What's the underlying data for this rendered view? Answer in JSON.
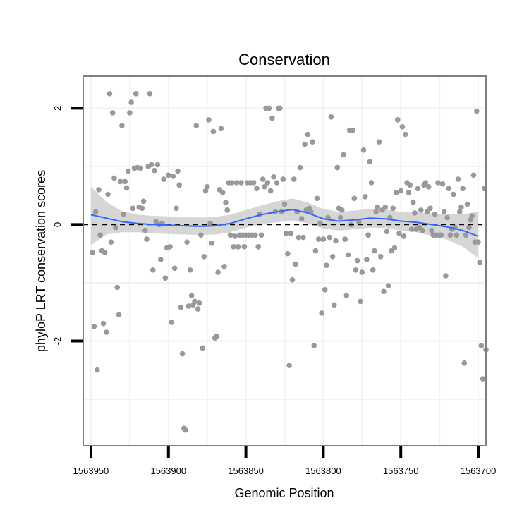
{
  "chart_data": {
    "type": "scatter",
    "title": "Conservation",
    "xlabel": "Genomic Position",
    "ylabel": "phyloP LRT conservation scores",
    "x_reversed": true,
    "xlim": [
      1563955,
      1563695
    ],
    "ylim": [
      -3.8,
      2.55
    ],
    "x_ticks": [
      1563950,
      1563900,
      1563850,
      1563800,
      1563750,
      1563700
    ],
    "x_tick_labels": [
      "1563950",
      "1563900",
      "1563850",
      "1563800",
      "1563750",
      "1563700"
    ],
    "y_ticks": [
      2,
      0,
      -2
    ],
    "y_tick_labels": [
      "2",
      "0",
      "-2"
    ],
    "grid": true,
    "reference_line": {
      "y": 0,
      "style": "dashed"
    },
    "colors": {
      "points": "#999999",
      "smooth_line": "#3366ff",
      "ribbon": "#cccccc",
      "reference": "#000000",
      "panel_border": "#7f7f7f",
      "grid": "#f2f2f2"
    },
    "points": [
      {
        "x": 1563949,
        "y": -0.48
      },
      {
        "x": 1563948,
        "y": -1.75
      },
      {
        "x": 1563947,
        "y": 0.22
      },
      {
        "x": 1563946,
        "y": -2.5
      },
      {
        "x": 1563945,
        "y": 0.6
      },
      {
        "x": 1563944,
        "y": -0.18
      },
      {
        "x": 1563943,
        "y": -0.45
      },
      {
        "x": 1563942,
        "y": -1.7
      },
      {
        "x": 1563941,
        "y": -0.48
      },
      {
        "x": 1563940,
        "y": -1.85
      },
      {
        "x": 1563939,
        "y": 0.52
      },
      {
        "x": 1563938,
        "y": 2.25
      },
      {
        "x": 1563937,
        "y": -0.3
      },
      {
        "x": 1563936,
        "y": 1.92
      },
      {
        "x": 1563935,
        "y": 0.8
      },
      {
        "x": 1563934,
        "y": -0.05
      },
      {
        "x": 1563933,
        "y": -1.08
      },
      {
        "x": 1563932,
        "y": -1.55
      },
      {
        "x": 1563931,
        "y": 0.74
      },
      {
        "x": 1563930,
        "y": 1.7
      },
      {
        "x": 1563929,
        "y": 0.18
      },
      {
        "x": 1563928,
        "y": 0.74
      },
      {
        "x": 1563927,
        "y": 0.63
      },
      {
        "x": 1563926,
        "y": 0.92
      },
      {
        "x": 1563925,
        "y": 1.92
      },
      {
        "x": 1563924,
        "y": 2.1
      },
      {
        "x": 1563923,
        "y": 0.28
      },
      {
        "x": 1563922,
        "y": 0.97
      },
      {
        "x": 1563921,
        "y": 2.25
      },
      {
        "x": 1563920,
        "y": 0.98
      },
      {
        "x": 1563919,
        "y": 0.3
      },
      {
        "x": 1563918,
        "y": 0.97
      },
      {
        "x": 1563917,
        "y": 0.28
      },
      {
        "x": 1563916,
        "y": 0.4
      },
      {
        "x": 1563915,
        "y": -0.1
      },
      {
        "x": 1563914,
        "y": -0.25
      },
      {
        "x": 1563913,
        "y": 1.0
      },
      {
        "x": 1563912,
        "y": 2.25
      },
      {
        "x": 1563911,
        "y": 1.03
      },
      {
        "x": 1563910,
        "y": -0.78
      },
      {
        "x": 1563909,
        "y": 0.93
      },
      {
        "x": 1563908,
        "y": 0.05
      },
      {
        "x": 1563907,
        "y": 1.03
      },
      {
        "x": 1563906,
        "y": 0.0
      },
      {
        "x": 1563905,
        "y": -0.6
      },
      {
        "x": 1563904,
        "y": 0.02
      },
      {
        "x": 1563903,
        "y": 0.78
      },
      {
        "x": 1563902,
        "y": -0.92
      },
      {
        "x": 1563901,
        "y": -0.4
      },
      {
        "x": 1563900,
        "y": 0.85
      },
      {
        "x": 1563899,
        "y": -0.38
      },
      {
        "x": 1563898,
        "y": -1.68
      },
      {
        "x": 1563897,
        "y": 0.83
      },
      {
        "x": 1563896,
        "y": -0.75
      },
      {
        "x": 1563895,
        "y": 0.28
      },
      {
        "x": 1563894,
        "y": 0.92
      },
      {
        "x": 1563893,
        "y": 0.68
      },
      {
        "x": 1563892,
        "y": -1.42
      },
      {
        "x": 1563891,
        "y": -2.22
      },
      {
        "x": 1563890,
        "y": -3.5
      },
      {
        "x": 1563889,
        "y": -3.53
      },
      {
        "x": 1563888,
        "y": -0.3
      },
      {
        "x": 1563887,
        "y": -1.4
      },
      {
        "x": 1563886,
        "y": -0.78
      },
      {
        "x": 1563885,
        "y": -1.22
      },
      {
        "x": 1563884,
        "y": -1.38
      },
      {
        "x": 1563883,
        "y": -1.32
      },
      {
        "x": 1563882,
        "y": 1.7
      },
      {
        "x": 1563881,
        "y": -1.45
      },
      {
        "x": 1563880,
        "y": -1.35
      },
      {
        "x": 1563879,
        "y": -0.18
      },
      {
        "x": 1563878,
        "y": -2.12
      },
      {
        "x": 1563877,
        "y": -0.55
      },
      {
        "x": 1563876,
        "y": 0.58
      },
      {
        "x": 1563875,
        "y": 0.65
      },
      {
        "x": 1563874,
        "y": 1.8
      },
      {
        "x": 1563873,
        "y": 0.02
      },
      {
        "x": 1563872,
        "y": -0.32
      },
      {
        "x": 1563871,
        "y": 1.6
      },
      {
        "x": 1563870,
        "y": -1.95
      },
      {
        "x": 1563869,
        "y": -1.92
      },
      {
        "x": 1563868,
        "y": -0.82
      },
      {
        "x": 1563867,
        "y": 0.6
      },
      {
        "x": 1563866,
        "y": 1.65
      },
      {
        "x": 1563865,
        "y": 0.55
      },
      {
        "x": 1563864,
        "y": -0.72
      },
      {
        "x": 1563863,
        "y": 0.38
      },
      {
        "x": 1563862,
        "y": 0.25
      },
      {
        "x": 1563861,
        "y": 0.72
      },
      {
        "x": 1563860,
        "y": -0.18
      },
      {
        "x": 1563859,
        "y": 0.72
      },
      {
        "x": 1563858,
        "y": -0.38
      },
      {
        "x": 1563857,
        "y": -0.2
      },
      {
        "x": 1563856,
        "y": 0.72
      },
      {
        "x": 1563855,
        "y": -0.38
      },
      {
        "x": 1563854,
        "y": -0.18
      },
      {
        "x": 1563853,
        "y": 0.72
      },
      {
        "x": 1563852,
        "y": -0.18
      },
      {
        "x": 1563851,
        "y": -0.38
      },
      {
        "x": 1563850,
        "y": -0.18
      },
      {
        "x": 1563849,
        "y": 0.72
      },
      {
        "x": 1563848,
        "y": -0.18
      },
      {
        "x": 1563847,
        "y": 0.72
      },
      {
        "x": 1563846,
        "y": -0.18
      },
      {
        "x": 1563845,
        "y": 0.72
      },
      {
        "x": 1563844,
        "y": -0.18
      },
      {
        "x": 1563843,
        "y": 0.62
      },
      {
        "x": 1563842,
        "y": -0.38
      },
      {
        "x": 1563841,
        "y": 0.18
      },
      {
        "x": 1563840,
        "y": -0.18
      },
      {
        "x": 1563839,
        "y": 0.78
      },
      {
        "x": 1563838,
        "y": 0.65
      },
      {
        "x": 1563837,
        "y": 2.0
      },
      {
        "x": 1563836,
        "y": 0.72
      },
      {
        "x": 1563835,
        "y": 2.0
      },
      {
        "x": 1563834,
        "y": 0.58
      },
      {
        "x": 1563833,
        "y": 1.83
      },
      {
        "x": 1563832,
        "y": 0.82
      },
      {
        "x": 1563831,
        "y": 0.22
      },
      {
        "x": 1563830,
        "y": 0.72
      },
      {
        "x": 1563829,
        "y": 2.0
      },
      {
        "x": 1563828,
        "y": 2.0
      },
      {
        "x": 1563827,
        "y": 0.22
      },
      {
        "x": 1563826,
        "y": 0.78
      },
      {
        "x": 1563825,
        "y": 0.35
      },
      {
        "x": 1563824,
        "y": -0.15
      },
      {
        "x": 1563823,
        "y": -0.5
      },
      {
        "x": 1563822,
        "y": -2.42
      },
      {
        "x": 1563821,
        "y": -0.15
      },
      {
        "x": 1563820,
        "y": -0.95
      },
      {
        "x": 1563819,
        "y": 0.78
      },
      {
        "x": 1563818,
        "y": -0.68
      },
      {
        "x": 1563817,
        "y": 0.22
      },
      {
        "x": 1563816,
        "y": -0.22
      },
      {
        "x": 1563815,
        "y": 0.98
      },
      {
        "x": 1563814,
        "y": 0.1
      },
      {
        "x": 1563813,
        "y": -0.22
      },
      {
        "x": 1563812,
        "y": 1.38
      },
      {
        "x": 1563811,
        "y": 0.25
      },
      {
        "x": 1563810,
        "y": 1.55
      },
      {
        "x": 1563809,
        "y": 0.28
      },
      {
        "x": 1563808,
        "y": 0.22
      },
      {
        "x": 1563807,
        "y": 1.42
      },
      {
        "x": 1563806,
        "y": -2.08
      },
      {
        "x": 1563805,
        "y": -0.45
      },
      {
        "x": 1563804,
        "y": 0.45
      },
      {
        "x": 1563803,
        "y": -0.25
      },
      {
        "x": 1563802,
        "y": 0.02
      },
      {
        "x": 1563801,
        "y": -1.52
      },
      {
        "x": 1563800,
        "y": -0.25
      },
      {
        "x": 1563799,
        "y": -1.12
      },
      {
        "x": 1563798,
        "y": -0.7
      },
      {
        "x": 1563797,
        "y": 0.12
      },
      {
        "x": 1563796,
        "y": -0.22
      },
      {
        "x": 1563795,
        "y": 1.85
      },
      {
        "x": 1563794,
        "y": -0.55
      },
      {
        "x": 1563793,
        "y": -1.38
      },
      {
        "x": 1563792,
        "y": -0.28
      },
      {
        "x": 1563791,
        "y": 0.98
      },
      {
        "x": 1563790,
        "y": 0.28
      },
      {
        "x": 1563789,
        "y": 0.12
      },
      {
        "x": 1563788,
        "y": 0.25
      },
      {
        "x": 1563787,
        "y": 1.2
      },
      {
        "x": 1563786,
        "y": -0.25
      },
      {
        "x": 1563785,
        "y": -1.22
      },
      {
        "x": 1563784,
        "y": -0.52
      },
      {
        "x": 1563783,
        "y": 1.62
      },
      {
        "x": 1563782,
        "y": 0.0
      },
      {
        "x": 1563781,
        "y": 1.62
      },
      {
        "x": 1563780,
        "y": 0.45
      },
      {
        "x": 1563779,
        "y": -0.78
      },
      {
        "x": 1563778,
        "y": -0.62
      },
      {
        "x": 1563777,
        "y": 0.05
      },
      {
        "x": 1563776,
        "y": -1.32
      },
      {
        "x": 1563775,
        "y": -0.82
      },
      {
        "x": 1563774,
        "y": 1.28
      },
      {
        "x": 1563773,
        "y": 0.48
      },
      {
        "x": 1563772,
        "y": -0.6
      },
      {
        "x": 1563771,
        "y": -0.18
      },
      {
        "x": 1563770,
        "y": 1.08
      },
      {
        "x": 1563769,
        "y": 0.72
      },
      {
        "x": 1563768,
        "y": -0.78
      },
      {
        "x": 1563767,
        "y": -0.45
      },
      {
        "x": 1563766,
        "y": 0.22
      },
      {
        "x": 1563765,
        "y": 0.3
      },
      {
        "x": 1563764,
        "y": 1.42
      },
      {
        "x": 1563763,
        "y": -0.55
      },
      {
        "x": 1563762,
        "y": 0.25
      },
      {
        "x": 1563761,
        "y": -1.15
      },
      {
        "x": 1563760,
        "y": 0.3
      },
      {
        "x": 1563759,
        "y": -0.12
      },
      {
        "x": 1563758,
        "y": -1.05
      },
      {
        "x": 1563757,
        "y": 0.12
      },
      {
        "x": 1563756,
        "y": -0.45
      },
      {
        "x": 1563755,
        "y": 0.28
      },
      {
        "x": 1563754,
        "y": -0.4
      },
      {
        "x": 1563753,
        "y": 0.55
      },
      {
        "x": 1563752,
        "y": 1.8
      },
      {
        "x": 1563751,
        "y": -0.15
      },
      {
        "x": 1563750,
        "y": 0.58
      },
      {
        "x": 1563749,
        "y": 1.68
      },
      {
        "x": 1563748,
        "y": -0.2
      },
      {
        "x": 1563747,
        "y": 1.55
      },
      {
        "x": 1563746,
        "y": 0.72
      },
      {
        "x": 1563745,
        "y": 0.55
      },
      {
        "x": 1563744,
        "y": 0.68
      },
      {
        "x": 1563743,
        "y": -0.08
      },
      {
        "x": 1563742,
        "y": 0.38
      },
      {
        "x": 1563741,
        "y": 0.2
      },
      {
        "x": 1563740,
        "y": -0.08
      },
      {
        "x": 1563739,
        "y": 0.62
      },
      {
        "x": 1563738,
        "y": -0.05
      },
      {
        "x": 1563737,
        "y": 0.25
      },
      {
        "x": 1563736,
        "y": -0.1
      },
      {
        "x": 1563735,
        "y": 0.68
      },
      {
        "x": 1563734,
        "y": 0.72
      },
      {
        "x": 1563733,
        "y": 0.22
      },
      {
        "x": 1563732,
        "y": 0.65
      },
      {
        "x": 1563731,
        "y": 0.28
      },
      {
        "x": 1563730,
        "y": -0.1
      },
      {
        "x": 1563729,
        "y": -0.18
      },
      {
        "x": 1563728,
        "y": 0.18
      },
      {
        "x": 1563727,
        "y": -0.18
      },
      {
        "x": 1563726,
        "y": 0.72
      },
      {
        "x": 1563725,
        "y": -0.18
      },
      {
        "x": 1563724,
        "y": -0.18
      },
      {
        "x": 1563723,
        "y": 0.7
      },
      {
        "x": 1563722,
        "y": 0.22
      },
      {
        "x": 1563721,
        "y": -0.88
      },
      {
        "x": 1563720,
        "y": 0.12
      },
      {
        "x": 1563719,
        "y": 0.62
      },
      {
        "x": 1563718,
        "y": -0.18
      },
      {
        "x": 1563717,
        "y": -0.08
      },
      {
        "x": 1563716,
        "y": 0.52
      },
      {
        "x": 1563715,
        "y": -0.05
      },
      {
        "x": 1563714,
        "y": -0.18
      },
      {
        "x": 1563713,
        "y": 0.78
      },
      {
        "x": 1563712,
        "y": 0.22
      },
      {
        "x": 1563711,
        "y": 0.3
      },
      {
        "x": 1563710,
        "y": 0.62
      },
      {
        "x": 1563709,
        "y": -2.38
      },
      {
        "x": 1563708,
        "y": -0.18
      },
      {
        "x": 1563707,
        "y": 0.35
      },
      {
        "x": 1563706,
        "y": -0.05
      },
      {
        "x": 1563705,
        "y": 0.08
      },
      {
        "x": 1563704,
        "y": 0.15
      },
      {
        "x": 1563703,
        "y": 0.85
      },
      {
        "x": 1563702,
        "y": -0.3
      },
      {
        "x": 1563701,
        "y": 1.95
      },
      {
        "x": 1563700,
        "y": -0.3
      },
      {
        "x": 1563699,
        "y": -0.65
      },
      {
        "x": 1563698,
        "y": -2.08
      },
      {
        "x": 1563697,
        "y": -2.65
      },
      {
        "x": 1563696,
        "y": 0.62
      },
      {
        "x": 1563695,
        "y": -2.15
      }
    ],
    "smooth": [
      {
        "x": 1563950,
        "y": 0.17
      },
      {
        "x": 1563940,
        "y": 0.11
      },
      {
        "x": 1563930,
        "y": 0.05
      },
      {
        "x": 1563920,
        "y": 0.02
      },
      {
        "x": 1563910,
        "y": 0.0
      },
      {
        "x": 1563900,
        "y": -0.01
      },
      {
        "x": 1563890,
        "y": -0.02
      },
      {
        "x": 1563880,
        "y": -0.03
      },
      {
        "x": 1563870,
        "y": -0.02
      },
      {
        "x": 1563860,
        "y": 0.02
      },
      {
        "x": 1563850,
        "y": 0.1
      },
      {
        "x": 1563840,
        "y": 0.17
      },
      {
        "x": 1563830,
        "y": 0.22
      },
      {
        "x": 1563820,
        "y": 0.26
      },
      {
        "x": 1563810,
        "y": 0.2
      },
      {
        "x": 1563800,
        "y": 0.1
      },
      {
        "x": 1563790,
        "y": 0.06
      },
      {
        "x": 1563780,
        "y": 0.08
      },
      {
        "x": 1563770,
        "y": 0.11
      },
      {
        "x": 1563760,
        "y": 0.1
      },
      {
        "x": 1563750,
        "y": 0.06
      },
      {
        "x": 1563740,
        "y": 0.04
      },
      {
        "x": 1563730,
        "y": 0.0
      },
      {
        "x": 1563720,
        "y": -0.04
      },
      {
        "x": 1563710,
        "y": -0.1
      },
      {
        "x": 1563700,
        "y": -0.2
      }
    ],
    "ribbon": [
      {
        "x": 1563950,
        "lo": -0.35,
        "hi": 0.65
      },
      {
        "x": 1563940,
        "lo": -0.17,
        "hi": 0.39
      },
      {
        "x": 1563930,
        "lo": -0.13,
        "hi": 0.23
      },
      {
        "x": 1563920,
        "lo": -0.13,
        "hi": 0.17
      },
      {
        "x": 1563910,
        "lo": -0.15,
        "hi": 0.15
      },
      {
        "x": 1563900,
        "lo": -0.16,
        "hi": 0.14
      },
      {
        "x": 1563890,
        "lo": -0.17,
        "hi": 0.13
      },
      {
        "x": 1563880,
        "lo": -0.18,
        "hi": 0.12
      },
      {
        "x": 1563870,
        "lo": -0.17,
        "hi": 0.13
      },
      {
        "x": 1563860,
        "lo": -0.13,
        "hi": 0.17
      },
      {
        "x": 1563850,
        "lo": -0.05,
        "hi": 0.25
      },
      {
        "x": 1563840,
        "lo": 0.01,
        "hi": 0.33
      },
      {
        "x": 1563830,
        "lo": 0.04,
        "hi": 0.4
      },
      {
        "x": 1563820,
        "lo": 0.07,
        "hi": 0.45
      },
      {
        "x": 1563810,
        "lo": 0.02,
        "hi": 0.38
      },
      {
        "x": 1563800,
        "lo": -0.07,
        "hi": 0.27
      },
      {
        "x": 1563790,
        "lo": -0.1,
        "hi": 0.22
      },
      {
        "x": 1563780,
        "lo": -0.08,
        "hi": 0.24
      },
      {
        "x": 1563770,
        "lo": -0.05,
        "hi": 0.27
      },
      {
        "x": 1563760,
        "lo": -0.06,
        "hi": 0.26
      },
      {
        "x": 1563750,
        "lo": -0.1,
        "hi": 0.22
      },
      {
        "x": 1563740,
        "lo": -0.13,
        "hi": 0.21
      },
      {
        "x": 1563730,
        "lo": -0.19,
        "hi": 0.19
      },
      {
        "x": 1563720,
        "lo": -0.26,
        "hi": 0.18
      },
      {
        "x": 1563710,
        "lo": -0.38,
        "hi": 0.18
      },
      {
        "x": 1563700,
        "lo": -0.58,
        "hi": 0.22
      }
    ]
  }
}
